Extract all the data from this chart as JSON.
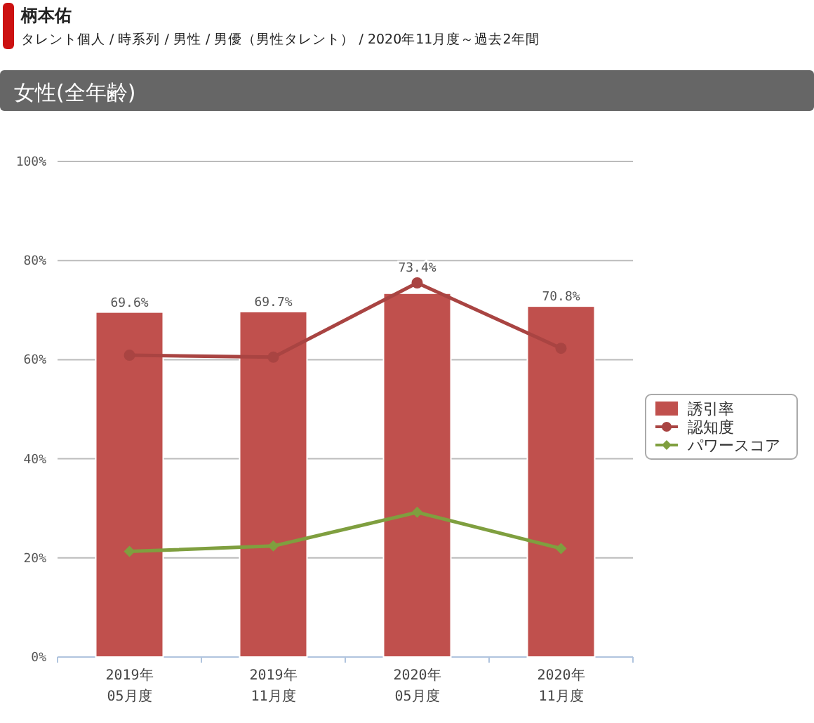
{
  "chart_data": {
    "type": "bar",
    "title": "柄本佑",
    "subtitle": "タレント個人 / 時系列 / 男性 / 男優（男性タレント） / 2020年11月度～過去2年間",
    "annotations": [
      "女性(全年齢)"
    ],
    "categories": [
      "2019年\n05月度",
      "2019年\n11月度",
      "2020年\n05月度",
      "2020年\n11月度"
    ],
    "series": [
      {
        "name": "誘引率",
        "color": "#c0504d",
        "values": [
          69.6,
          69.7,
          73.4,
          70.8
        ],
        "value_labels": [
          "69.6%",
          "69.7%",
          "73.4%",
          "70.8%"
        ]
      },
      {
        "name": "認知度",
        "type": "line",
        "marker": "circle",
        "color": "#a94442",
        "values": [
          60.9,
          60.5,
          75.5,
          62.3
        ]
      },
      {
        "name": "パワースコア",
        "type": "line",
        "marker": "diamond",
        "color": "#7f9f3f",
        "values": [
          21.3,
          22.4,
          29.2,
          21.9
        ]
      }
    ],
    "ylim": [
      0,
      100
    ],
    "yticks": [
      {
        "value": 0,
        "label": "0%"
      },
      {
        "value": 20,
        "label": "20%"
      },
      {
        "value": 40,
        "label": "40%"
      },
      {
        "value": 60,
        "label": "60%"
      },
      {
        "value": 80,
        "label": "80%"
      },
      {
        "value": 100,
        "label": "100%"
      }
    ],
    "grid": "y",
    "legend": "right"
  }
}
